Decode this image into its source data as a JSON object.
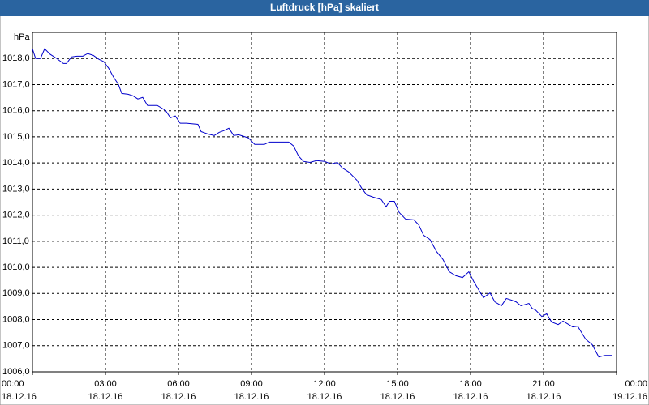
{
  "chart_data": {
    "type": "line",
    "title": "Luftdruck [hPa] skaliert",
    "y_label": "hPa",
    "x": [
      0,
      0.13,
      0.33,
      0.5,
      0.73,
      1.0,
      1.27,
      1.4,
      1.6,
      1.83,
      2.07,
      2.27,
      2.5,
      2.73,
      2.93,
      3.13,
      3.33,
      3.53,
      3.67,
      3.93,
      4.13,
      4.33,
      4.53,
      4.73,
      5.13,
      5.47,
      5.67,
      5.87,
      6.07,
      6.33,
      6.8,
      6.93,
      7.2,
      7.47,
      7.67,
      7.87,
      8.07,
      8.27,
      8.47,
      8.67,
      8.87,
      9.13,
      9.53,
      9.73,
      10.53,
      10.73,
      10.93,
      11.13,
      11.4,
      11.67,
      12.0,
      12.27,
      12.53,
      12.73,
      13.0,
      13.33,
      13.53,
      13.73,
      14.0,
      14.33,
      14.53,
      14.67,
      14.87,
      15.07,
      15.33,
      15.67,
      15.87,
      16.07,
      16.33,
      16.6,
      16.87,
      17.13,
      17.4,
      17.67,
      17.93,
      18.13,
      18.33,
      18.53,
      18.8,
      19.0,
      19.27,
      19.47,
      19.67,
      19.87,
      20.07,
      20.4,
      20.53,
      20.67,
      20.93,
      21.13,
      21.33,
      21.6,
      21.8,
      22.2,
      22.4,
      22.73,
      23.0,
      23.27,
      23.53,
      23.8
    ],
    "series": [
      {
        "color": "#0000cc",
        "values": [
          1018.37,
          1018.0,
          1018.0,
          1018.37,
          1018.16,
          1018.0,
          1017.81,
          1017.81,
          1018.06,
          1018.09,
          1018.09,
          1018.19,
          1018.12,
          1017.97,
          1017.88,
          1017.63,
          1017.29,
          1017.01,
          1016.66,
          1016.63,
          1016.57,
          1016.45,
          1016.51,
          1016.2,
          1016.2,
          1016.01,
          1015.73,
          1015.8,
          1015.52,
          1015.52,
          1015.48,
          1015.2,
          1015.11,
          1015.05,
          1015.17,
          1015.24,
          1015.33,
          1015.05,
          1015.08,
          1015.02,
          1014.96,
          1014.71,
          1014.71,
          1014.8,
          1014.8,
          1014.65,
          1014.27,
          1014.06,
          1014.02,
          1014.09,
          1014.06,
          1013.96,
          1014.02,
          1013.81,
          1013.65,
          1013.34,
          1013.03,
          1012.78,
          1012.69,
          1012.6,
          1012.32,
          1012.53,
          1012.53,
          1012.1,
          1011.85,
          1011.82,
          1011.63,
          1011.23,
          1011.07,
          1010.61,
          1010.3,
          1009.83,
          1009.68,
          1009.61,
          1009.83,
          1009.46,
          1009.15,
          1008.84,
          1009.02,
          1008.68,
          1008.53,
          1008.81,
          1008.75,
          1008.68,
          1008.53,
          1008.62,
          1008.43,
          1008.37,
          1008.12,
          1008.22,
          1007.91,
          1007.81,
          1007.94,
          1007.72,
          1007.75,
          1007.25,
          1007.04,
          1006.57,
          1006.63,
          1006.63
        ]
      }
    ],
    "xlim": [
      0,
      24
    ],
    "xticks": [
      {
        "value": 0,
        "label": "00:00"
      },
      {
        "value": 3,
        "label": "03:00"
      },
      {
        "value": 6,
        "label": "06:00"
      },
      {
        "value": 9,
        "label": "09:00"
      },
      {
        "value": 12,
        "label": "12:00"
      },
      {
        "value": 15,
        "label": "15:00"
      },
      {
        "value": 18,
        "label": "18:00"
      },
      {
        "value": 21,
        "label": "21:00"
      },
      {
        "value": 24,
        "label": "00:00"
      }
    ],
    "xtick_dates": [
      "18.12.16",
      "18.12.16",
      "18.12.16",
      "18.12.16",
      "18.12.16",
      "18.12.16",
      "18.12.16",
      "18.12.16",
      "19.12.16"
    ],
    "ylim": [
      1006,
      1019
    ],
    "yticks": [
      {
        "value": 1006,
        "label": "1006,0"
      },
      {
        "value": 1007,
        "label": "1007,0"
      },
      {
        "value": 1008,
        "label": "1008,0"
      },
      {
        "value": 1009,
        "label": "1009,0"
      },
      {
        "value": 1010,
        "label": "1010,0"
      },
      {
        "value": 1011,
        "label": "1011,0"
      },
      {
        "value": 1012,
        "label": "1012,0"
      },
      {
        "value": 1013,
        "label": "1013,0"
      },
      {
        "value": 1014,
        "label": "1014,0"
      },
      {
        "value": 1015,
        "label": "1015,0"
      },
      {
        "value": 1016,
        "label": "1016,0"
      },
      {
        "value": 1017,
        "label": "1017,0"
      },
      {
        "value": 1018,
        "label": "1018,0"
      }
    ],
    "grid": true
  }
}
